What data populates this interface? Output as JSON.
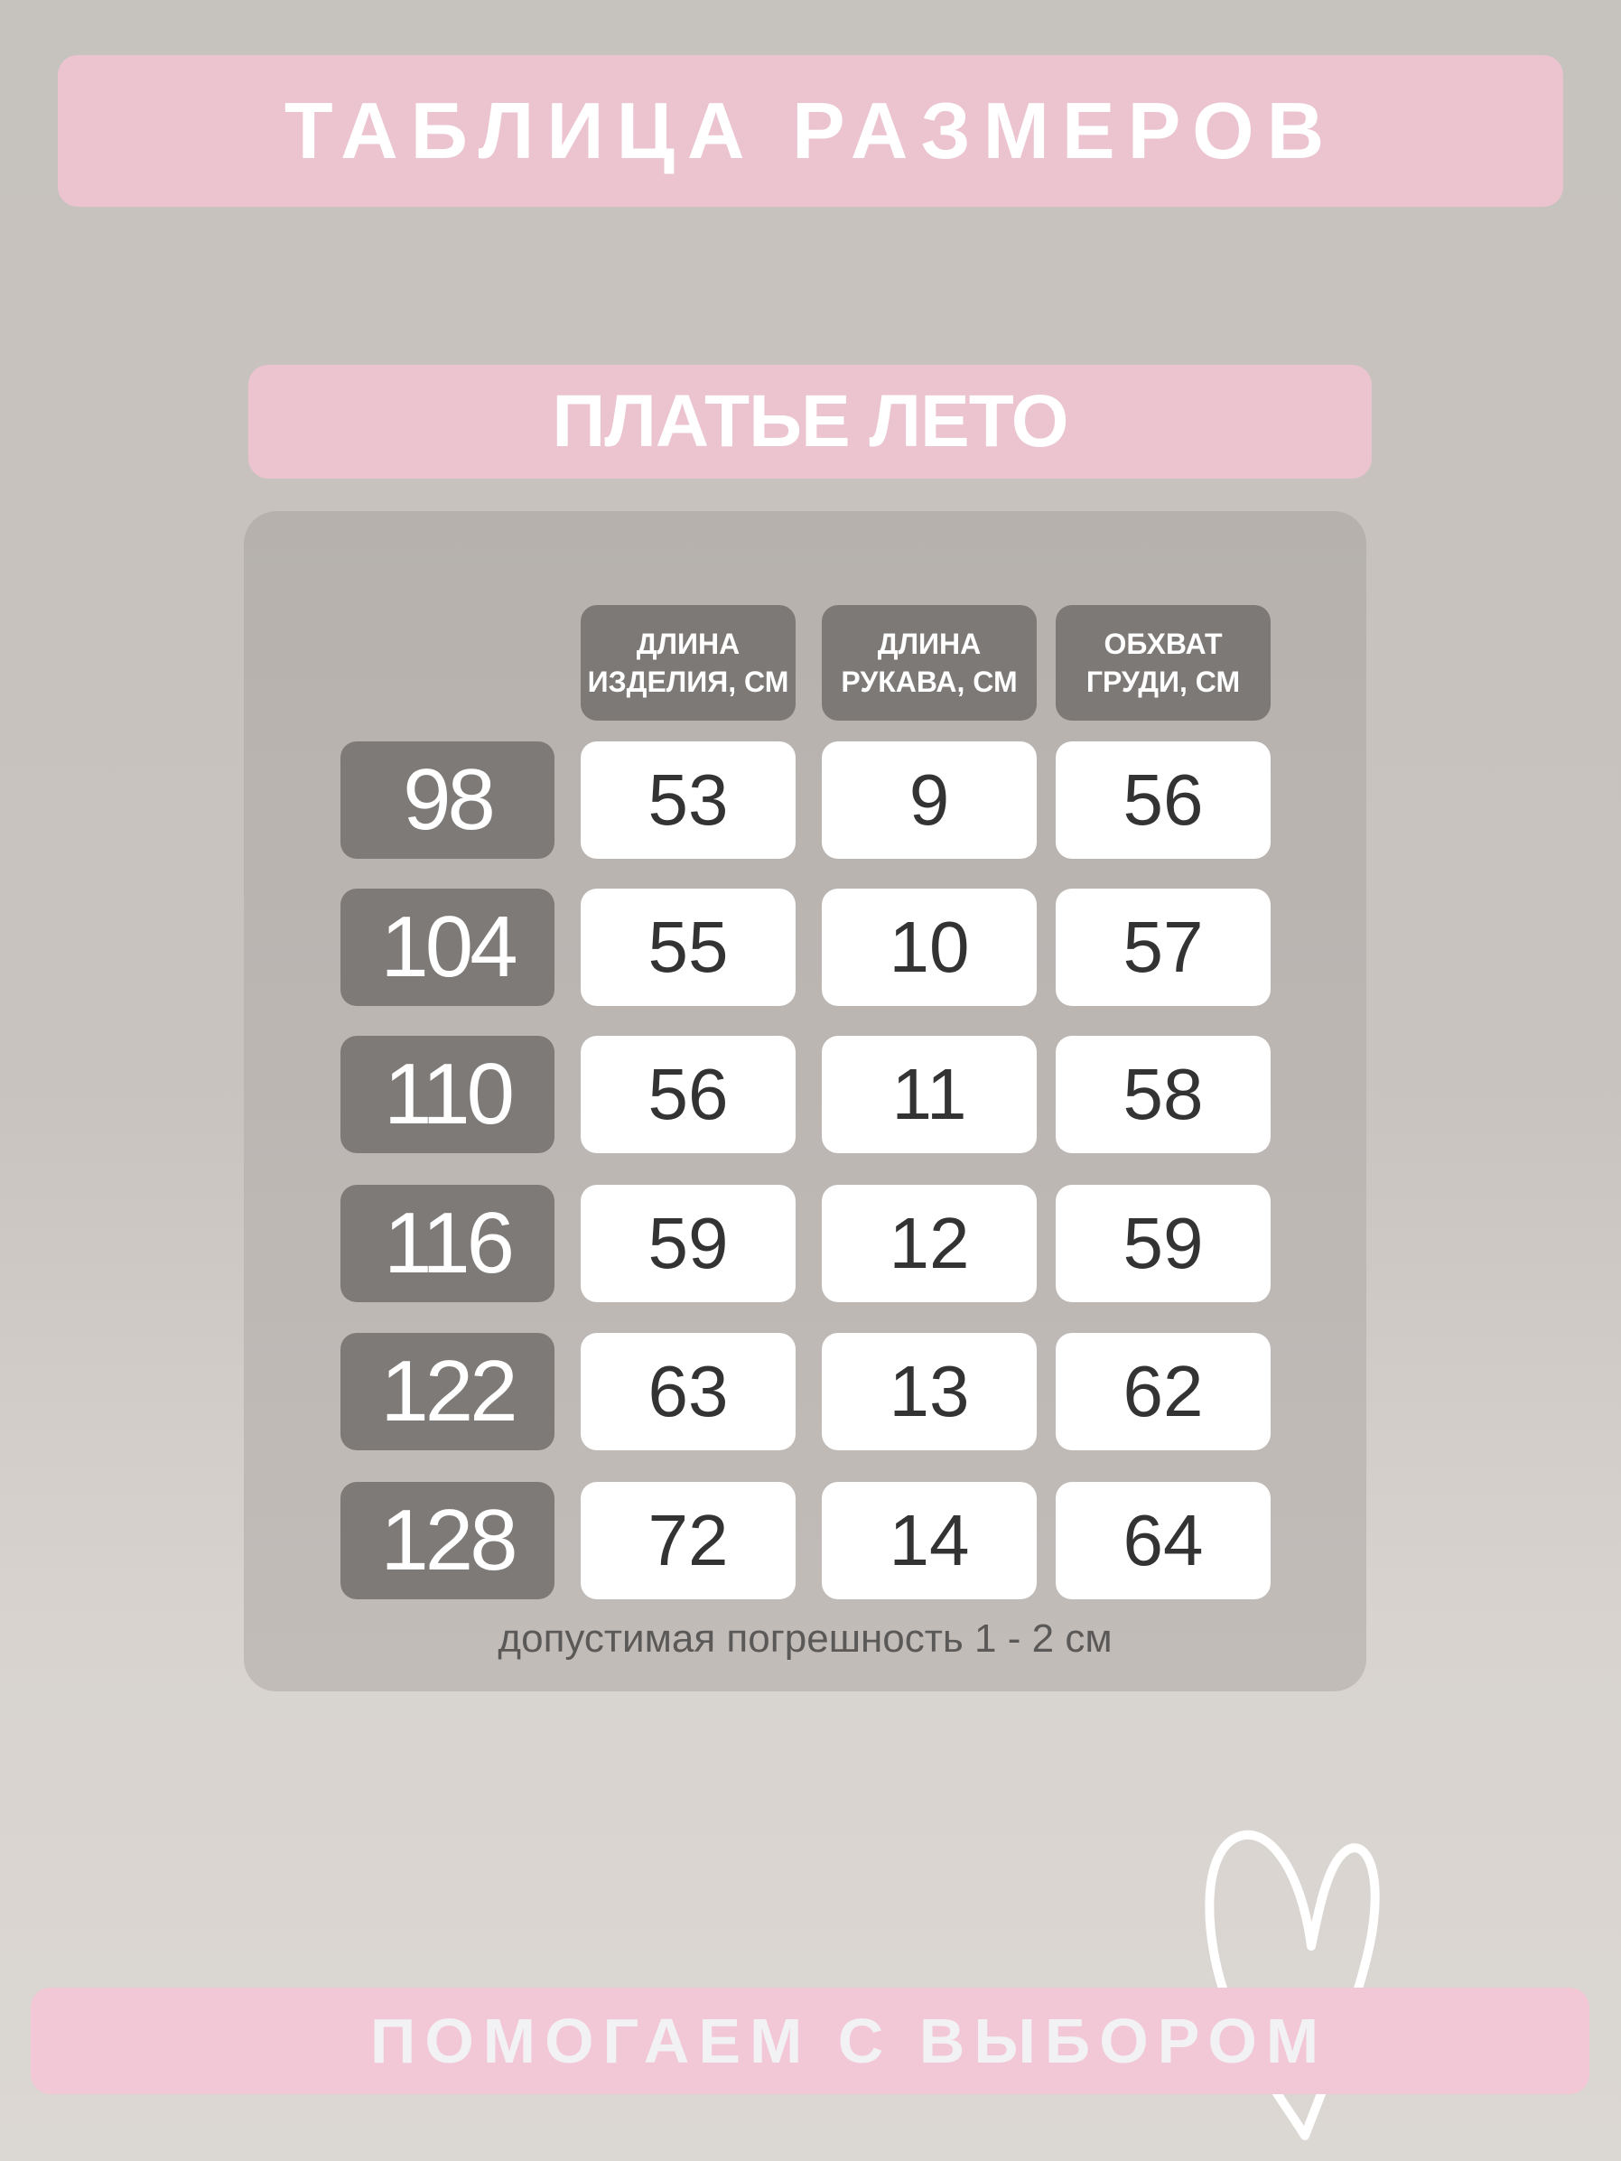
{
  "title": "ТАБЛИЦА РАЗМЕРОВ",
  "product": "ПЛАТЬЕ ЛЕТО",
  "headers": [
    "ДЛИНА ИЗДЕЛИЯ, СМ",
    "ДЛИНА РУКАВА, СМ",
    "ОБХВАТ ГРУДИ, СМ"
  ],
  "rows": [
    {
      "size": "98",
      "values": [
        "53",
        "9",
        "56"
      ]
    },
    {
      "size": "104",
      "values": [
        "55",
        "10",
        "57"
      ]
    },
    {
      "size": "110",
      "values": [
        "56",
        "11",
        "58"
      ]
    },
    {
      "size": "116",
      "values": [
        "59",
        "12",
        "59"
      ]
    },
    {
      "size": "122",
      "values": [
        "63",
        "13",
        "62"
      ]
    },
    {
      "size": "128",
      "values": [
        "72",
        "14",
        "64"
      ]
    }
  ],
  "note": "допустимая погрешность 1 - 2 см",
  "footer": "ПОМОГАЕМ С ВЫБОРОМ",
  "icons": {
    "heart": "heart-outline-icon"
  },
  "colors": {
    "pink": "#ebc4d0",
    "dark_cell": "#7d7977",
    "value_cell": "#ffffff"
  }
}
